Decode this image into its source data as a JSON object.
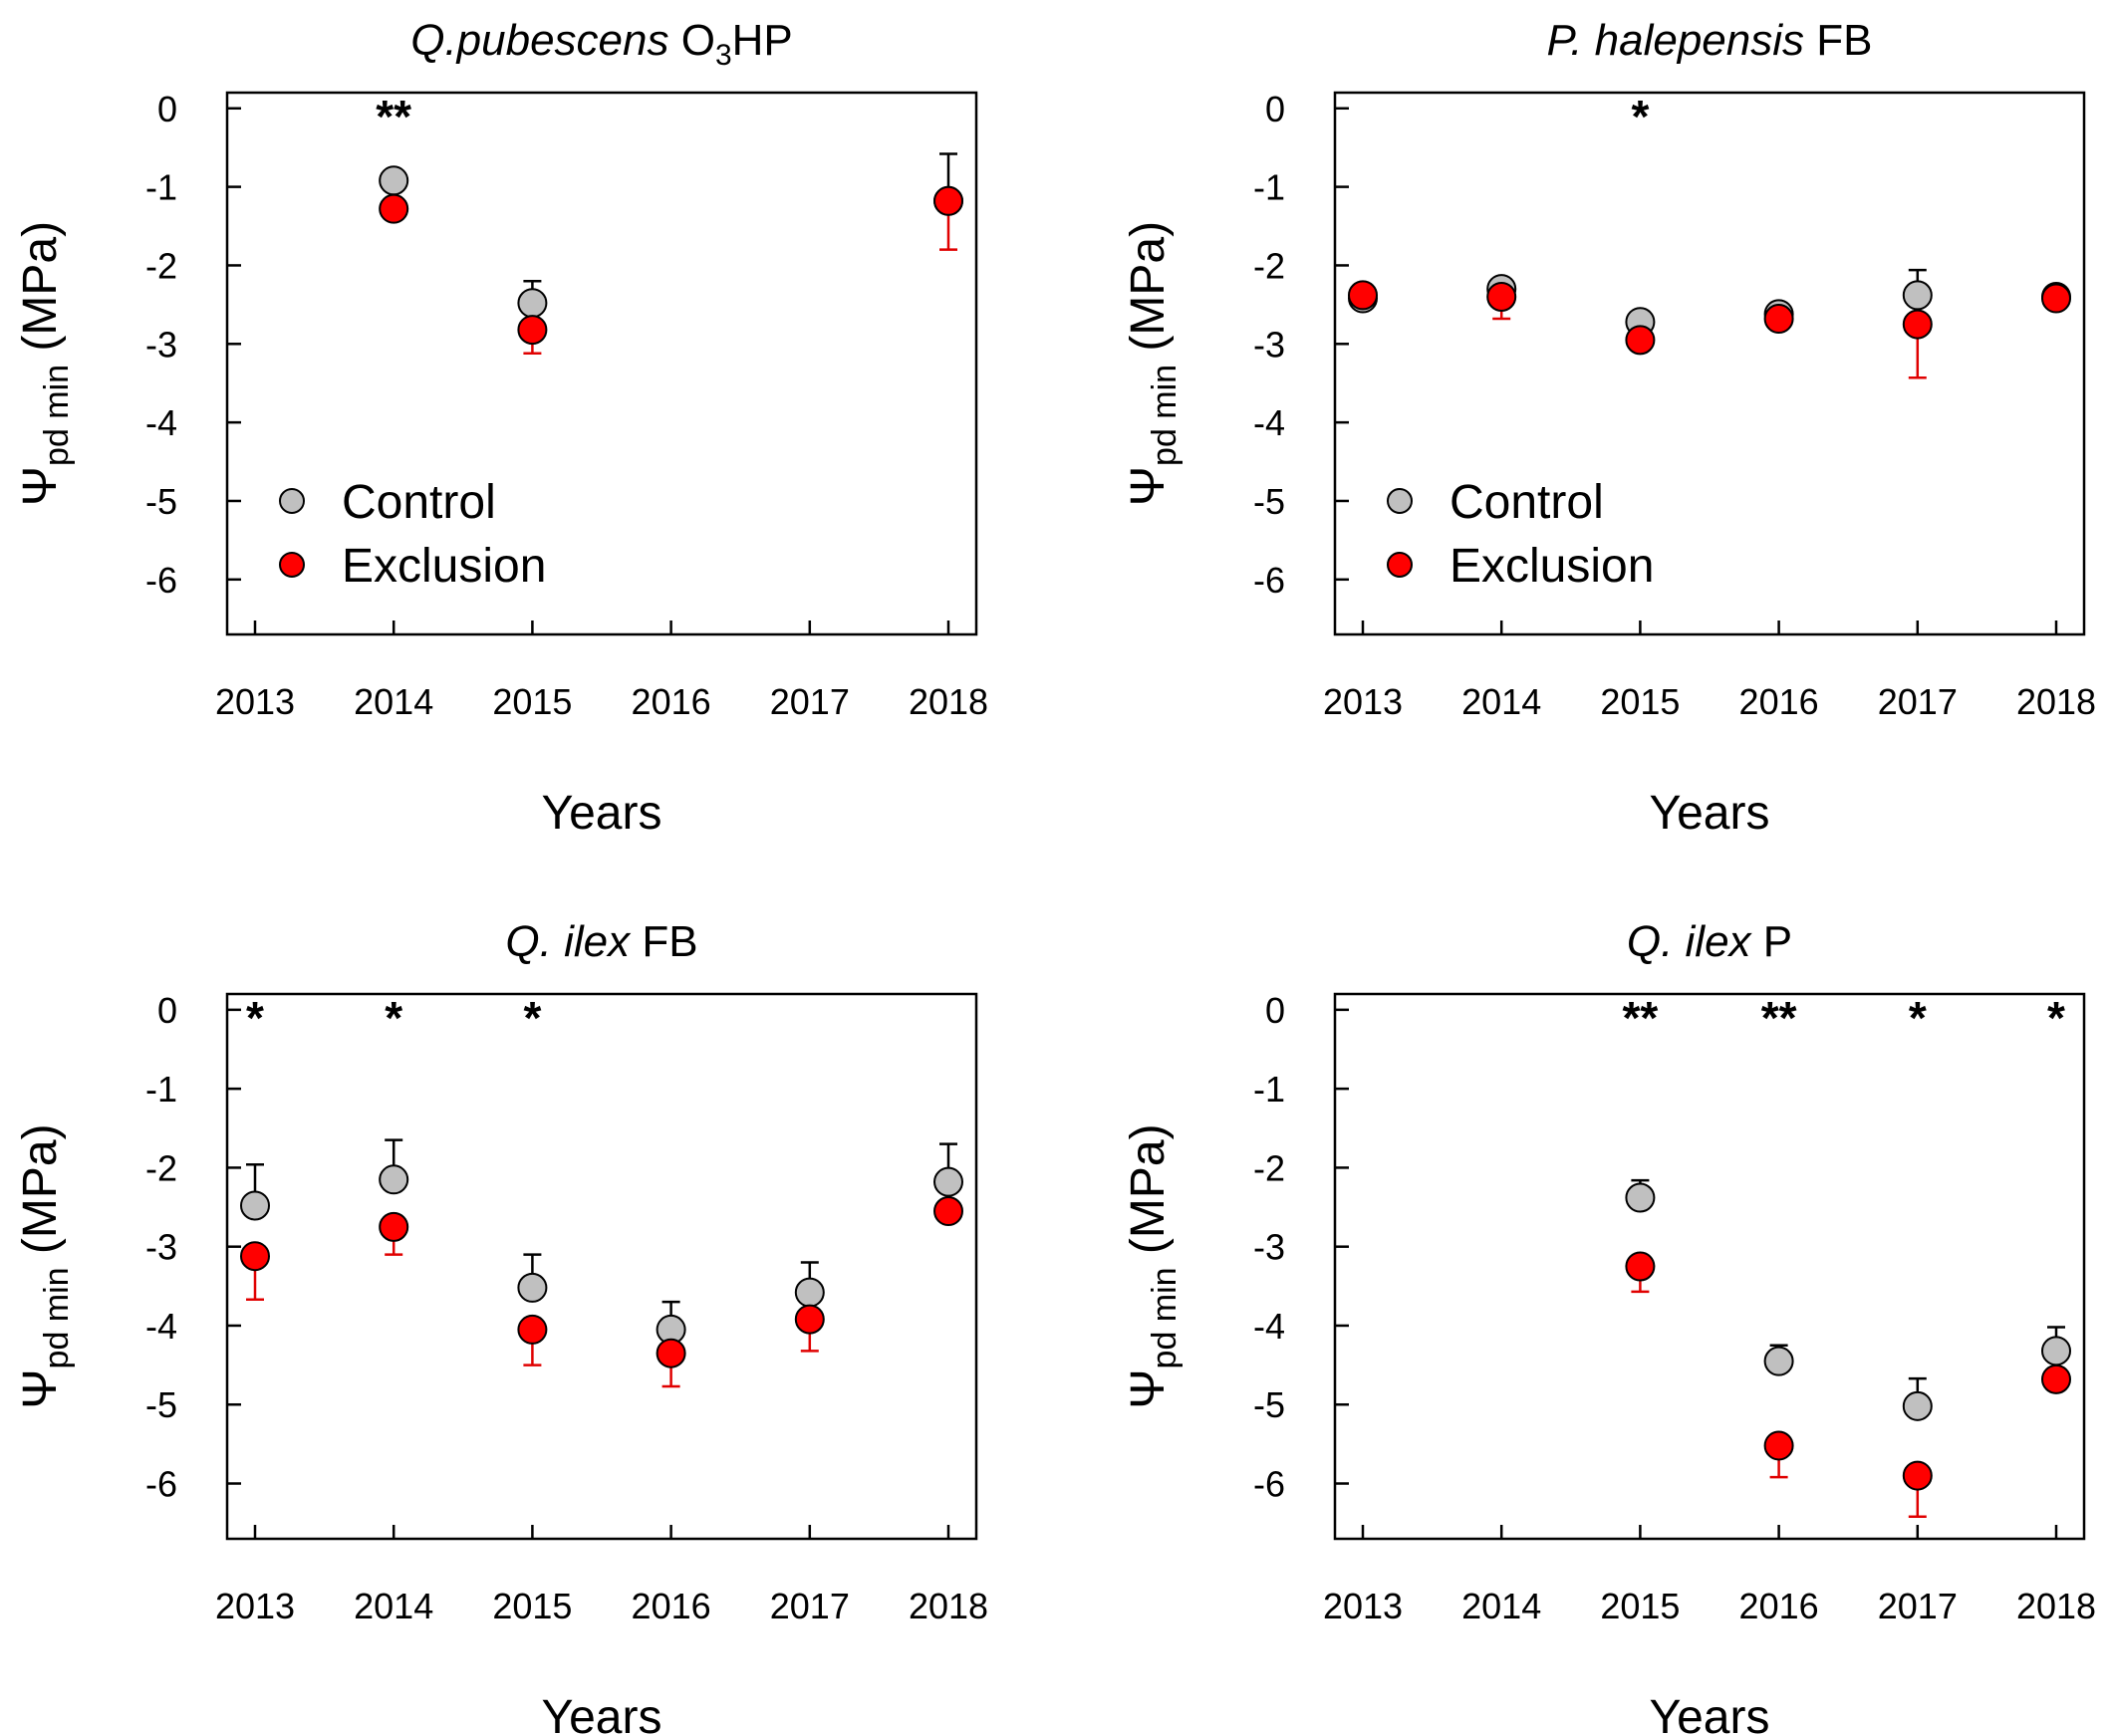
{
  "chart_data": [
    {
      "type": "scatter",
      "title_italic": "Q.pubescens",
      "title_rest": "O",
      "title_sub": "3",
      "title_tail": "HP",
      "xlabel": "Years",
      "ylabel_main": "Ψ",
      "ylabel_sub": "pd min",
      "ylabel_unit": "(MPa)",
      "x_ticks": [
        "2013",
        "2014",
        "2015",
        "2016",
        "2017",
        "2018"
      ],
      "y_ticks": [
        "0",
        "-1",
        "-2",
        "-3",
        "-4",
        "-5",
        "-6"
      ],
      "ylim": [
        -6.7,
        0.2
      ],
      "legend": {
        "show": true,
        "position": "bottom-left",
        "items": [
          "Control",
          "Exclusion"
        ]
      },
      "series": [
        {
          "name": "Control",
          "color": "#c0c0c0",
          "points": [
            {
              "x": 2014,
              "y": -0.92,
              "err": 0.05
            },
            {
              "x": 2015,
              "y": -2.48,
              "err": 0.28
            },
            {
              "x": 2018,
              "y": -1.18,
              "err": 0.6
            }
          ]
        },
        {
          "name": "Exclusion",
          "color": "#ff0000",
          "points": [
            {
              "x": 2014,
              "y": -1.28,
              "err": 0.08
            },
            {
              "x": 2015,
              "y": -2.82,
              "err": 0.3
            },
            {
              "x": 2018,
              "y": -1.18,
              "err": 0.62
            }
          ]
        }
      ],
      "significance": [
        {
          "x": 2014,
          "mark": "**"
        }
      ]
    },
    {
      "type": "scatter",
      "title_italic": "P. halepensis",
      "title_rest": " FB",
      "title_sub": "",
      "title_tail": "",
      "xlabel": "Years",
      "ylabel_main": "Ψ",
      "ylabel_sub": "pd min",
      "ylabel_unit": "(MPa)",
      "x_ticks": [
        "2013",
        "2014",
        "2015",
        "2016",
        "2017",
        "2018"
      ],
      "y_ticks": [
        "0",
        "-1",
        "-2",
        "-3",
        "-4",
        "-5",
        "-6"
      ],
      "ylim": [
        -6.7,
        0.2
      ],
      "legend": {
        "show": true,
        "position": "bottom-left",
        "items": [
          "Control",
          "Exclusion"
        ]
      },
      "series": [
        {
          "name": "Control",
          "color": "#c0c0c0",
          "points": [
            {
              "x": 2013,
              "y": -2.42,
              "err": 0.05
            },
            {
              "x": 2014,
              "y": -2.3,
              "err": 0.12
            },
            {
              "x": 2015,
              "y": -2.72,
              "err": 0.08
            },
            {
              "x": 2016,
              "y": -2.62,
              "err": 0.06
            },
            {
              "x": 2017,
              "y": -2.38,
              "err": 0.32
            },
            {
              "x": 2018,
              "y": -2.4,
              "err": 0.05
            }
          ]
        },
        {
          "name": "Exclusion",
          "color": "#ff0000",
          "points": [
            {
              "x": 2013,
              "y": -2.38,
              "err": 0.05
            },
            {
              "x": 2014,
              "y": -2.4,
              "err": 0.28
            },
            {
              "x": 2015,
              "y": -2.95,
              "err": 0.08
            },
            {
              "x": 2016,
              "y": -2.68,
              "err": 0.08
            },
            {
              "x": 2017,
              "y": -2.75,
              "err": 0.68
            },
            {
              "x": 2018,
              "y": -2.42,
              "err": 0.05
            }
          ]
        }
      ],
      "significance": [
        {
          "x": 2015,
          "mark": "*"
        }
      ]
    },
    {
      "type": "scatter",
      "title_italic": "Q. ilex",
      "title_rest": " FB",
      "title_sub": "",
      "title_tail": "",
      "xlabel": "Years",
      "ylabel_main": "Ψ",
      "ylabel_sub": "pd min",
      "ylabel_unit": "(MPa)",
      "x_ticks": [
        "2013",
        "2014",
        "2015",
        "2016",
        "2017",
        "2018"
      ],
      "y_ticks": [
        "0",
        "-1",
        "-2",
        "-3",
        "-4",
        "-5",
        "-6"
      ],
      "ylim": [
        -6.7,
        0.2
      ],
      "legend": {
        "show": false,
        "position": "",
        "items": []
      },
      "series": [
        {
          "name": "Control",
          "color": "#c0c0c0",
          "points": [
            {
              "x": 2013,
              "y": -2.48,
              "err": 0.52
            },
            {
              "x": 2014,
              "y": -2.15,
              "err": 0.5
            },
            {
              "x": 2015,
              "y": -3.52,
              "err": 0.42
            },
            {
              "x": 2016,
              "y": -4.05,
              "err": 0.35
            },
            {
              "x": 2017,
              "y": -3.58,
              "err": 0.38
            },
            {
              "x": 2018,
              "y": -2.18,
              "err": 0.48
            }
          ]
        },
        {
          "name": "Exclusion",
          "color": "#ff0000",
          "points": [
            {
              "x": 2013,
              "y": -3.12,
              "err": 0.55
            },
            {
              "x": 2014,
              "y": -2.75,
              "err": 0.35
            },
            {
              "x": 2015,
              "y": -4.05,
              "err": 0.45
            },
            {
              "x": 2016,
              "y": -4.35,
              "err": 0.42
            },
            {
              "x": 2017,
              "y": -3.92,
              "err": 0.4
            },
            {
              "x": 2018,
              "y": -2.55,
              "err": 0.1
            }
          ]
        }
      ],
      "significance": [
        {
          "x": 2013,
          "mark": "*"
        },
        {
          "x": 2014,
          "mark": "*"
        },
        {
          "x": 2015,
          "mark": "*"
        }
      ]
    },
    {
      "type": "scatter",
      "title_italic": "Q. ilex",
      "title_rest": " P",
      "title_sub": "",
      "title_tail": "",
      "xlabel": "Years",
      "ylabel_main": "Ψ",
      "ylabel_sub": "pd min",
      "ylabel_unit": "(MPa)",
      "x_ticks": [
        "2013",
        "2014",
        "2015",
        "2016",
        "2017",
        "2018"
      ],
      "y_ticks": [
        "0",
        "-1",
        "-2",
        "-3",
        "-4",
        "-5",
        "-6"
      ],
      "ylim": [
        -6.7,
        0.2
      ],
      "legend": {
        "show": false,
        "position": "",
        "items": []
      },
      "series": [
        {
          "name": "Control",
          "color": "#c0c0c0",
          "points": [
            {
              "x": 2015,
              "y": -2.38,
              "err": 0.22
            },
            {
              "x": 2016,
              "y": -4.45,
              "err": 0.2
            },
            {
              "x": 2017,
              "y": -5.02,
              "err": 0.35
            },
            {
              "x": 2018,
              "y": -4.32,
              "err": 0.3
            }
          ]
        },
        {
          "name": "Exclusion",
          "color": "#ff0000",
          "points": [
            {
              "x": 2015,
              "y": -3.25,
              "err": 0.32
            },
            {
              "x": 2016,
              "y": -5.52,
              "err": 0.4
            },
            {
              "x": 2017,
              "y": -5.9,
              "err": 0.52
            },
            {
              "x": 2018,
              "y": -4.68,
              "err": 0.1
            }
          ]
        }
      ],
      "significance": [
        {
          "x": 2015,
          "mark": "**"
        },
        {
          "x": 2016,
          "mark": "**"
        },
        {
          "x": 2017,
          "mark": "*"
        },
        {
          "x": 2018,
          "mark": "*"
        }
      ]
    }
  ]
}
